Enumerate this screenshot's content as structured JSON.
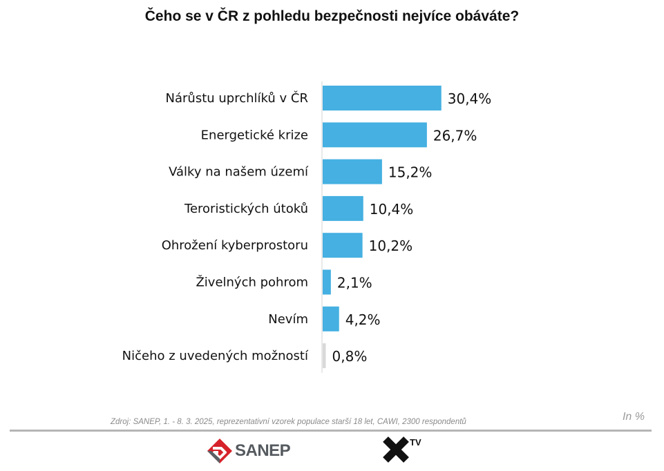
{
  "header": {
    "title": "Čeho se v ČR z pohledu bezpečnosti nejvíce obáváte?"
  },
  "chart_data": {
    "type": "bar",
    "orientation": "horizontal",
    "title": "Čeho se v ČR z pohledu bezpečnosti nejvíce obáváte?",
    "categories": [
      "Nárůstu uprchlíků v ČR",
      "Energetické krize",
      "Války na našem území",
      "Teroristických útoků",
      "Ohrožení kyberprostoru",
      "Živelných pohrom",
      "Nevím",
      "Ničeho z uvedených možností"
    ],
    "values": [
      30.4,
      26.7,
      15.2,
      10.4,
      10.2,
      2.1,
      4.2,
      0.8
    ],
    "value_labels": [
      "30,4%",
      "26,7%",
      "15,2%",
      "10,4%",
      "10,2%",
      "2,1%",
      "4,2%",
      "0,8%"
    ],
    "unit": "In %",
    "bar_colors": [
      "#45B0E1",
      "#45B0E1",
      "#45B0E1",
      "#45B0E1",
      "#45B0E1",
      "#45B0E1",
      "#45B0E1",
      "#D9D9D9"
    ],
    "grid": false,
    "legend": "none"
  },
  "footer": {
    "source": "Zdroj: SANEP, 1. - 8. 3. 2025, reprezentativní vzorek populace starší 18 let, CAWI, 2300 respondentů",
    "unit_note": "In %",
    "logos": [
      {
        "icon": "sanep-logo-icon",
        "text": "SANEP",
        "color": "#D6222A"
      },
      {
        "icon": "x-tv-logo-icon",
        "text": "TV"
      }
    ]
  }
}
